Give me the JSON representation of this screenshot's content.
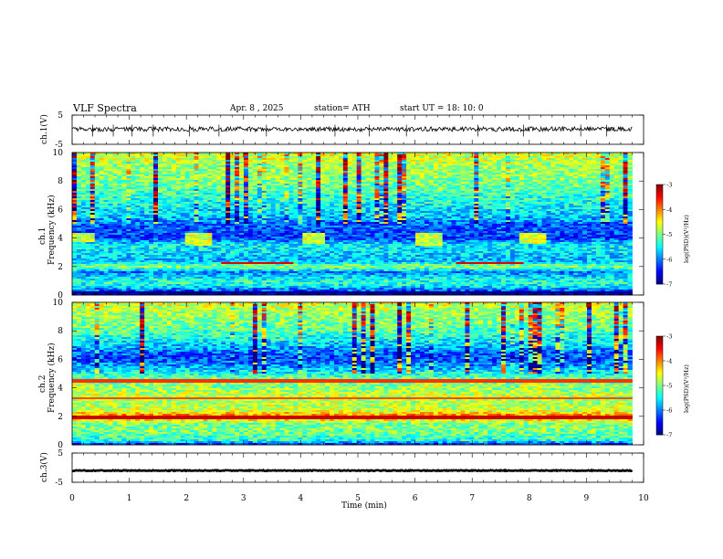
{
  "header": {
    "title": "VLF Spectra",
    "date": "Apr. 8  , 2025",
    "station": "station= ATH",
    "start": "start UT =  18: 10: 0"
  },
  "axes": {
    "ch1_wave_ylabel": "ch.1(V)",
    "ch1_spec_ylabel_line1": "ch.1",
    "ch1_spec_ylabel_line2": "Frequency (kHz)",
    "ch2_spec_ylabel_line1": "ch.2",
    "ch2_spec_ylabel_line2": "Frequency (kHz)",
    "ch3_wave_ylabel": "ch.3(V)",
    "xlabel": "Time (min)",
    "colorbar_label": "log(PSD)(V²/Hz)"
  },
  "chart_data": [
    {
      "type": "line",
      "id": "ch1-waveform",
      "ylabel": "ch.1(V)",
      "xlim": [
        0,
        10
      ],
      "ylim": [
        -5,
        5
      ],
      "yticks": [
        -5,
        5
      ],
      "data_end_min": 9.8,
      "baseline_v": 0.2,
      "noise_amplitude_v": 0.8,
      "spike_times_min": [
        0.36,
        0.72,
        1.05,
        1.42,
        2.05,
        2.57,
        3.4,
        4.6,
        5.2,
        5.85,
        7.1,
        7.9,
        8.9,
        9.35
      ]
    },
    {
      "type": "heatmap",
      "id": "ch1-spectrogram",
      "ylabel": "Frequency (kHz)",
      "xlim": [
        0,
        10
      ],
      "ylim": [
        0,
        10
      ],
      "yticks": [
        0,
        2,
        4,
        6,
        8,
        10
      ],
      "data_end_min": 9.8,
      "colorbar": {
        "label": "log(PSD)(V²/Hz)",
        "range": [
          -7,
          -3
        ],
        "ticks": [
          -3,
          -4,
          -5,
          -6,
          -7
        ],
        "colormap": "jet"
      },
      "profile_freq_khz": [
        0.0,
        0.3,
        0.6,
        0.9,
        1.2,
        1.6,
        2.0,
        2.4,
        3.0,
        3.5,
        4.0,
        4.5,
        5.0,
        5.5,
        6.0,
        6.5,
        7.0,
        7.5,
        8.0,
        8.5,
        9.0,
        9.5,
        10.0
      ],
      "profile_log_psd": [
        -7.0,
        -6.2,
        -5.6,
        -5.3,
        -5.6,
        -6.0,
        -4.9,
        -5.8,
        -5.6,
        -5.5,
        -6.3,
        -6.2,
        -6.1,
        -5.7,
        -5.6,
        -5.4,
        -5.3,
        -5.1,
        -5.0,
        -4.9,
        -4.9,
        -4.7,
        -4.6
      ],
      "bursts": [
        {
          "start_min": 0.0,
          "end_min": 0.4,
          "fmin_khz": 3.7,
          "fmax_khz": 4.3
        },
        {
          "start_min": 2.0,
          "end_min": 2.45,
          "fmin_khz": 3.5,
          "fmax_khz": 4.3
        },
        {
          "start_min": 4.0,
          "end_min": 4.4,
          "fmin_khz": 3.6,
          "fmax_khz": 4.3
        },
        {
          "start_min": 6.0,
          "end_min": 6.45,
          "fmin_khz": 3.5,
          "fmax_khz": 4.4
        },
        {
          "start_min": 7.85,
          "end_min": 8.3,
          "fmin_khz": 3.6,
          "fmax_khz": 4.3
        }
      ],
      "lines": [
        {
          "freq_khz": 2.25,
          "start_min": 2.6,
          "end_min": 3.9,
          "log_psd": -3.4
        },
        {
          "freq_khz": 2.25,
          "start_min": 6.7,
          "end_min": 7.9,
          "log_psd": -3.4
        },
        {
          "freq_khz": 0.2,
          "start_min": 0.0,
          "end_min": 9.8,
          "log_psd": -7.0
        }
      ]
    },
    {
      "type": "heatmap",
      "id": "ch2-spectrogram",
      "ylabel": "Frequency (kHz)",
      "xlim": [
        0,
        10
      ],
      "ylim": [
        0,
        10
      ],
      "yticks": [
        0,
        2,
        4,
        6,
        8,
        10
      ],
      "data_end_min": 9.8,
      "colorbar": {
        "label": "log(PSD)(V²/Hz)",
        "range": [
          -7,
          -3
        ],
        "ticks": [
          -3,
          -4,
          -5,
          -6,
          -7
        ],
        "colormap": "jet"
      },
      "profile_freq_khz": [
        0.0,
        0.3,
        0.6,
        1.0,
        1.5,
        2.0,
        2.4,
        3.0,
        3.5,
        4.0,
        4.5,
        5.0,
        5.5,
        6.0,
        6.5,
        7.0,
        7.5,
        8.0,
        8.5,
        9.0,
        9.5,
        10.0
      ],
      "profile_log_psd": [
        -6.5,
        -5.4,
        -5.2,
        -5.0,
        -5.0,
        -3.9,
        -4.7,
        -4.8,
        -4.7,
        -5.0,
        -5.0,
        -5.4,
        -5.9,
        -6.2,
        -6.1,
        -5.7,
        -5.4,
        -5.2,
        -5.0,
        -4.9,
        -4.8,
        -4.6
      ],
      "bursts": [
        {
          "start_min": 0.0,
          "end_min": 0.4,
          "fmin_khz": 3.5,
          "fmax_khz": 4.3
        },
        {
          "start_min": 2.0,
          "end_min": 2.45,
          "fmin_khz": 3.5,
          "fmax_khz": 4.3
        },
        {
          "start_min": 4.0,
          "end_min": 4.4,
          "fmin_khz": 3.5,
          "fmax_khz": 4.3
        },
        {
          "start_min": 6.0,
          "end_min": 6.45,
          "fmin_khz": 3.5,
          "fmax_khz": 4.4
        },
        {
          "start_min": 7.85,
          "end_min": 8.3,
          "fmin_khz": 3.5,
          "fmax_khz": 4.3
        }
      ],
      "lines": [
        {
          "freq_khz": 1.9,
          "start_min": 0.0,
          "end_min": 9.8,
          "log_psd": -3.3
        },
        {
          "freq_khz": 3.3,
          "start_min": 0.0,
          "end_min": 9.8,
          "log_psd": -3.8
        },
        {
          "freq_khz": 4.5,
          "start_min": 0.0,
          "end_min": 9.8,
          "log_psd": -3.7
        }
      ]
    },
    {
      "type": "line",
      "id": "ch3-waveform",
      "ylabel": "ch.3(V)",
      "xlim": [
        0,
        10
      ],
      "ylim": [
        -5,
        5
      ],
      "yticks": [
        -5,
        5
      ],
      "data_end_min": 9.8,
      "baseline_v": -1.0,
      "noise_amplitude_v": 0.15
    }
  ],
  "xaxis": {
    "label": "Time (min)",
    "ticks": [
      0,
      1,
      2,
      3,
      4,
      5,
      6,
      7,
      8,
      9,
      10
    ]
  },
  "colors": {
    "frame": "#000000",
    "background": "#ffffff",
    "waveform": "#000000"
  }
}
